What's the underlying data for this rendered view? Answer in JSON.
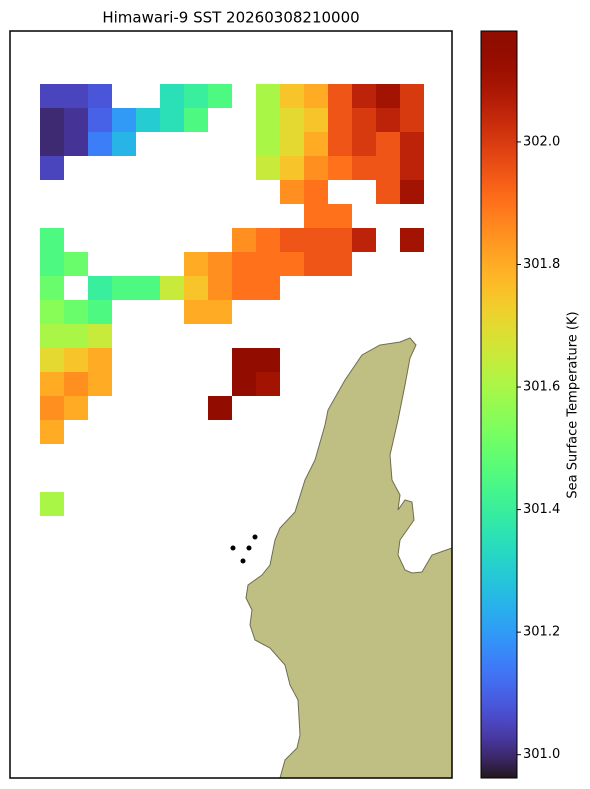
{
  "chart_data": {
    "type": "heatmap",
    "title": "Himawari-9 SST 20260308210000",
    "colorbar_label": "Sea Surface Temperature (K)",
    "clim": [
      300.962,
      302.181
    ],
    "cticks": [
      {
        "value": 301.0,
        "label": "301.0"
      },
      301.2,
      301.4,
      301.6,
      301.8,
      {
        "value": 302.0,
        "label": "302.0"
      }
    ],
    "z": [
      [
        301.05,
        301.05,
        301.08,
        null,
        null,
        301.35,
        301.4,
        301.45,
        null,
        301.6,
        301.75,
        301.8,
        301.95,
        302.05,
        302.1,
        302.0
      ],
      [
        301.0,
        301.02,
        301.1,
        301.2,
        301.3,
        301.35,
        301.45,
        null,
        null,
        301.6,
        301.7,
        301.75,
        301.95,
        302.0,
        302.05,
        302.0
      ],
      [
        301.0,
        301.02,
        301.15,
        301.25,
        null,
        null,
        null,
        null,
        null,
        301.6,
        301.7,
        301.8,
        301.95,
        302.0,
        301.95,
        302.05
      ],
      [
        301.05,
        null,
        null,
        null,
        null,
        null,
        null,
        null,
        null,
        301.65,
        301.75,
        301.85,
        301.9,
        301.95,
        301.95,
        302.05
      ],
      [
        null,
        null,
        null,
        null,
        null,
        null,
        null,
        null,
        null,
        null,
        301.85,
        301.9,
        null,
        null,
        301.95,
        302.1
      ],
      [
        null,
        null,
        null,
        null,
        null,
        null,
        null,
        null,
        null,
        null,
        null,
        301.9,
        301.9,
        null,
        null,
        null
      ],
      [
        301.45,
        null,
        null,
        null,
        null,
        null,
        null,
        null,
        301.85,
        301.9,
        301.95,
        301.95,
        301.95,
        302.05,
        null,
        302.1
      ],
      [
        301.45,
        301.5,
        null,
        null,
        null,
        null,
        301.8,
        301.85,
        301.9,
        301.9,
        301.9,
        301.95,
        301.95,
        null,
        null,
        null
      ],
      [
        301.5,
        null,
        301.4,
        301.45,
        301.45,
        301.65,
        301.75,
        301.85,
        301.9,
        301.9,
        null,
        null,
        null,
        null,
        null,
        null
      ],
      [
        301.55,
        301.5,
        301.45,
        null,
        null,
        null,
        301.8,
        301.8,
        null,
        null,
        null,
        null,
        null,
        null,
        null,
        null
      ],
      [
        301.6,
        301.6,
        301.65,
        null,
        null,
        null,
        null,
        null,
        null,
        null,
        null,
        null,
        null,
        null,
        null,
        null
      ],
      [
        301.7,
        301.75,
        301.8,
        null,
        null,
        null,
        null,
        null,
        302.15,
        302.15,
        null,
        null,
        null,
        null,
        null,
        null
      ],
      [
        301.8,
        301.85,
        301.8,
        null,
        null,
        null,
        null,
        null,
        302.15,
        302.1,
        null,
        null,
        null,
        null,
        null,
        null
      ],
      [
        301.85,
        301.8,
        null,
        null,
        null,
        null,
        null,
        302.15,
        null,
        null,
        null,
        null,
        null,
        null,
        null,
        null
      ],
      [
        301.8,
        null,
        null,
        null,
        null,
        null,
        null,
        null,
        null,
        null,
        null,
        null,
        null,
        null,
        null,
        null
      ],
      [
        null,
        null,
        null,
        null,
        null,
        null,
        null,
        null,
        null,
        null,
        null,
        null,
        null,
        null,
        null,
        null
      ],
      [
        null,
        null,
        null,
        null,
        null,
        null,
        null,
        null,
        null,
        null,
        null,
        null,
        null,
        null,
        null,
        null
      ],
      [
        301.6,
        null,
        null,
        null,
        null,
        null,
        null,
        null,
        null,
        null,
        null,
        null,
        null,
        null,
        null,
        null
      ]
    ]
  }
}
